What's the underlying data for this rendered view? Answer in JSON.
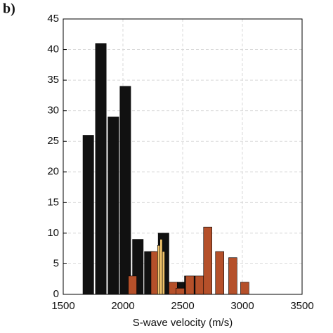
{
  "chart_data": {
    "type": "bar",
    "panel_label": "b)",
    "xlabel": "S-wave velocity (m/s)",
    "xlim": [
      1500,
      3500
    ],
    "xticks": [
      1500,
      2000,
      2500,
      3000,
      3500
    ],
    "ylim": [
      0,
      45
    ],
    "yticks": [
      0,
      5,
      10,
      15,
      20,
      25,
      30,
      35,
      40,
      45
    ],
    "grid": true,
    "series": [
      {
        "color": "#111111",
        "bar_width": 90,
        "x": [
          1710,
          1815,
          1920,
          2020,
          2125,
          2225,
          2340,
          2440,
          2500,
          2560,
          2690
        ],
        "values": [
          26,
          41,
          29,
          34,
          9,
          7,
          10,
          1,
          2,
          3,
          1
        ]
      },
      {
        "color": "#b5502a",
        "bar_width": 70,
        "x": [
          2080,
          2270,
          2420,
          2480,
          2560,
          2640,
          2710,
          2810,
          2920,
          3020
        ],
        "values": [
          3,
          7,
          2,
          1,
          3,
          3,
          11,
          7,
          6,
          2
        ]
      },
      {
        "color": "#f0c36b",
        "bar_width": 20,
        "x": [
          2300,
          2320,
          2340
        ],
        "values": [
          8,
          9,
          7
        ]
      }
    ]
  }
}
